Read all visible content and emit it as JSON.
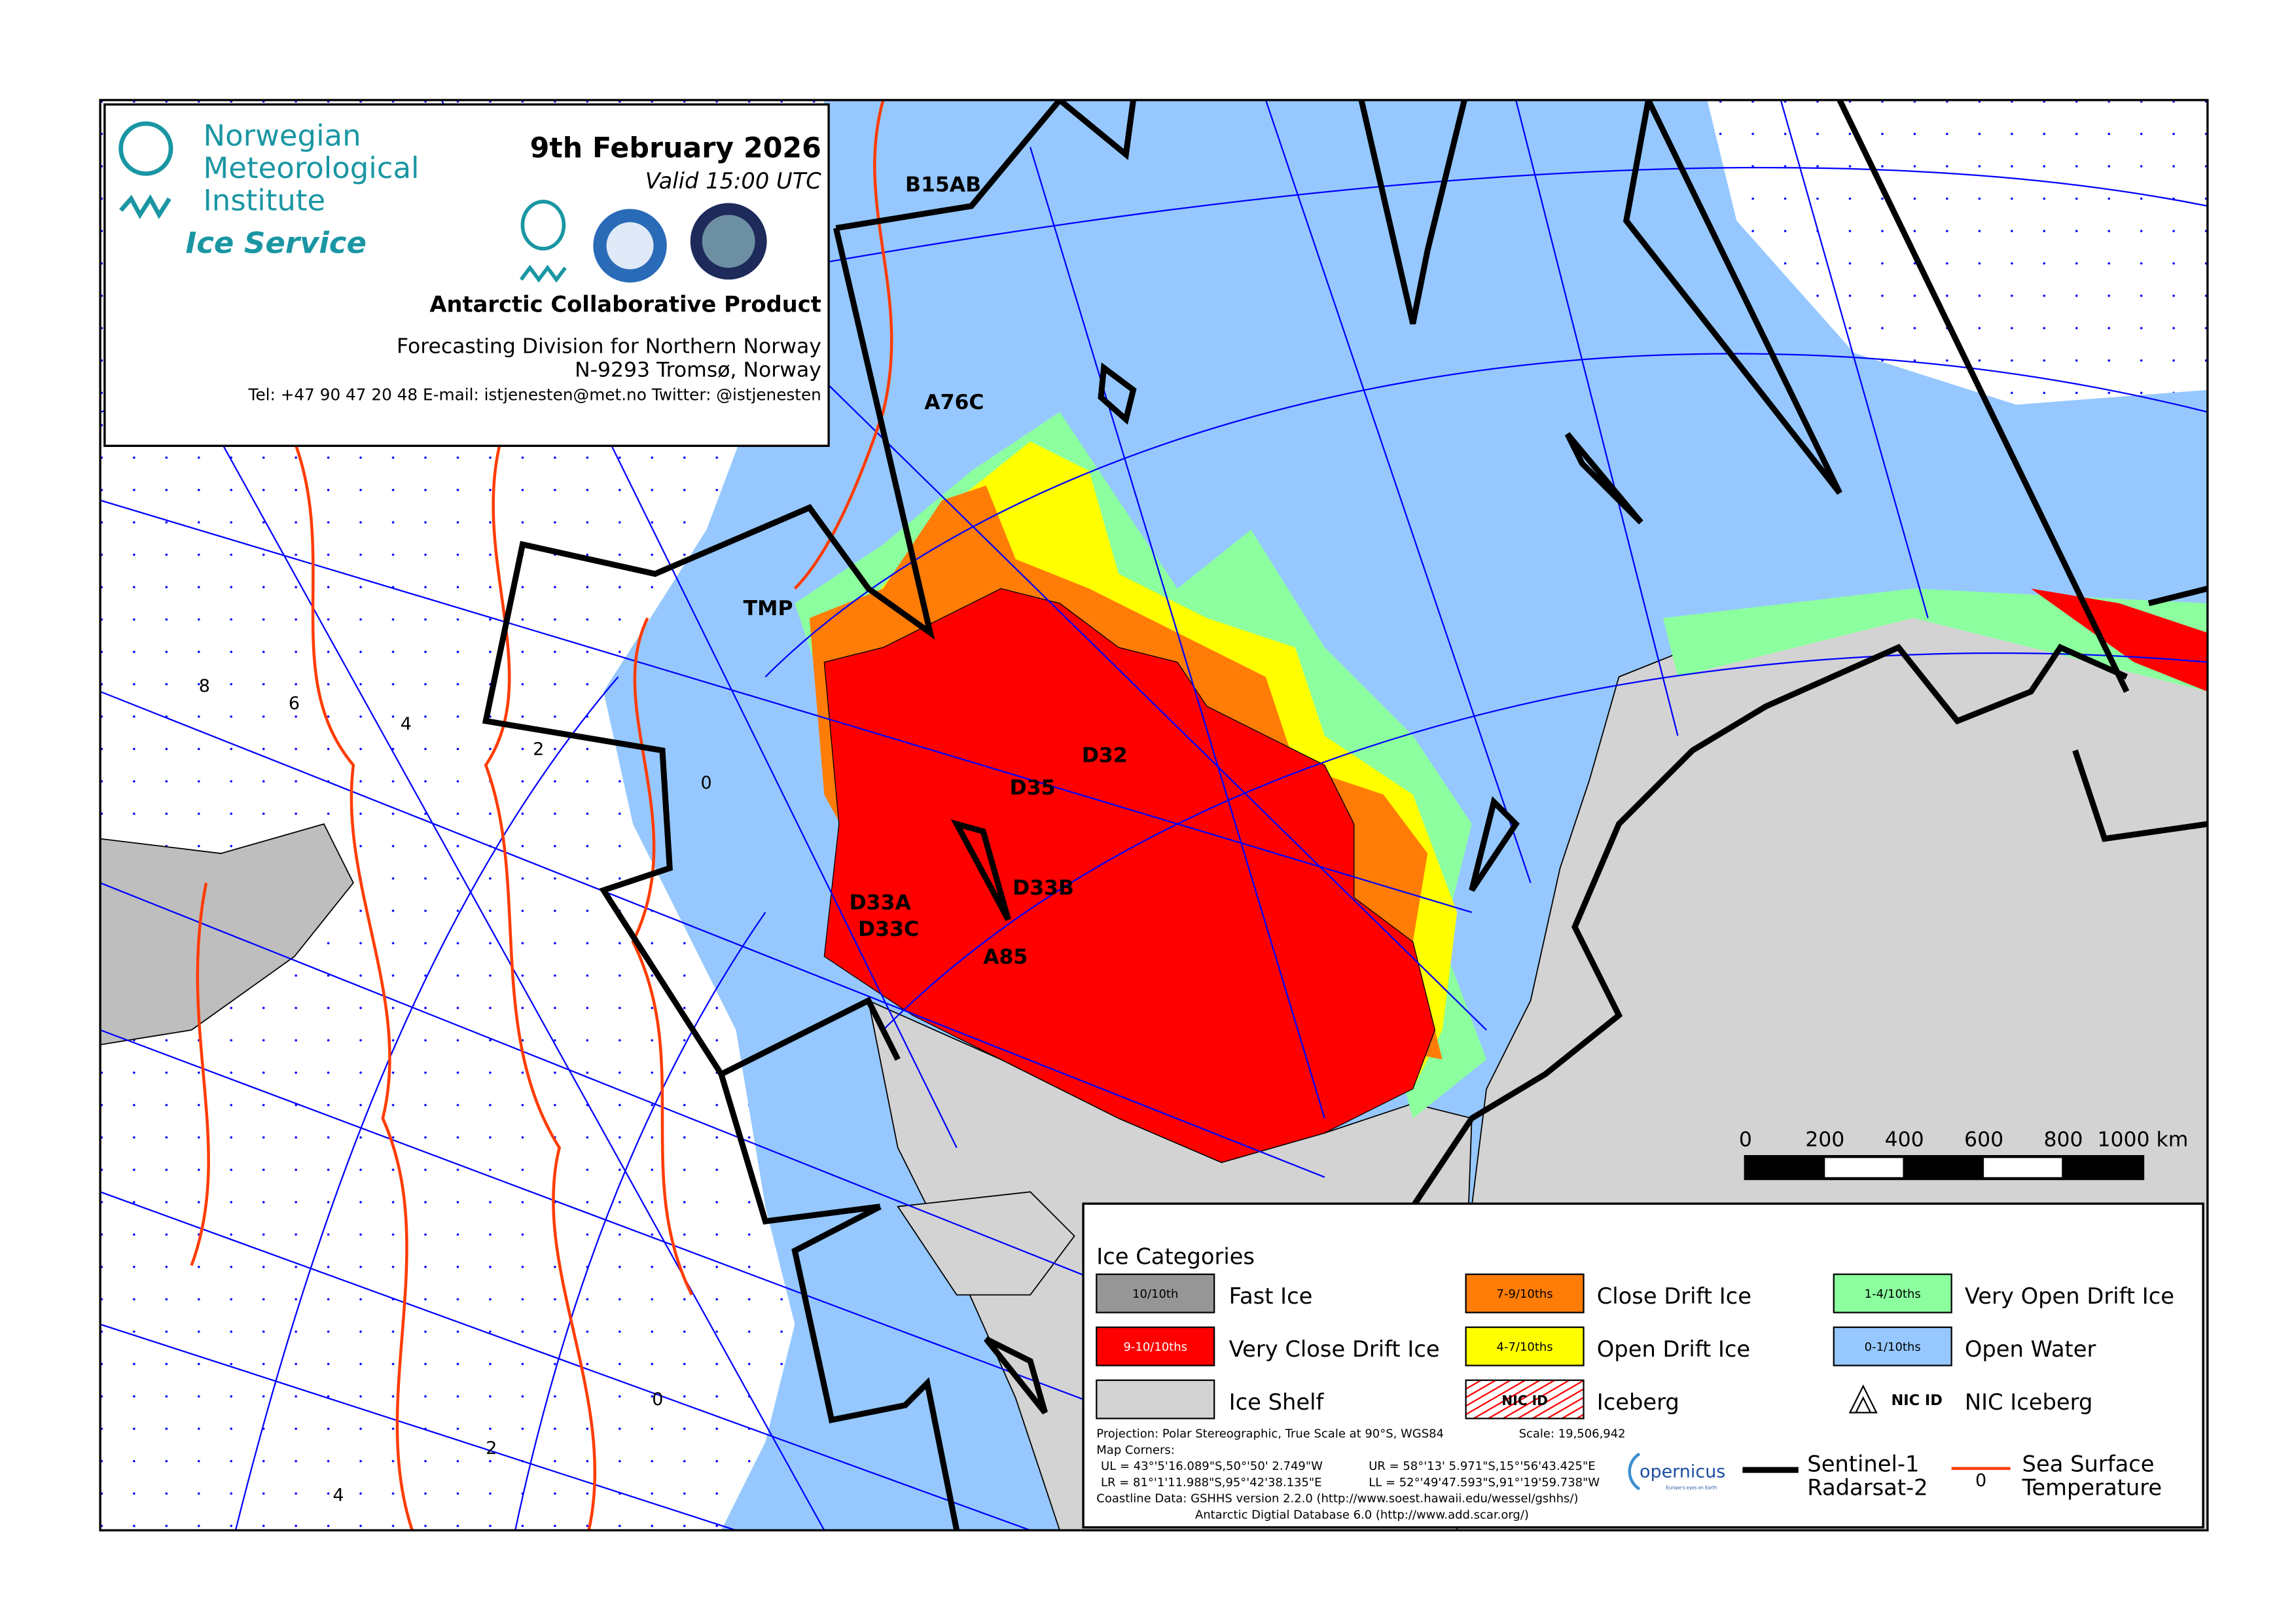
{
  "header": {
    "institute_lines": [
      "Norwegian",
      "Meteorological",
      "Institute"
    ],
    "service": "Ice Service",
    "date": "9th February 2026",
    "valid": "Valid 15:00 UTC",
    "product": "Antarctic Collaborative Product",
    "division": "Forecasting Division for Northern Norway",
    "address": "N-9293 Tromsø, Norway",
    "contact": "Tel: +47 90 47 20 48   E-mail: istjenesten@met.no   Twitter: @istjenesten"
  },
  "map": {
    "iceberg_labels": [
      "B15AB",
      "A76C",
      "TMP",
      "D32",
      "D35",
      "D33B",
      "D33A",
      "D33C",
      "A85"
    ],
    "sst_labels": [
      "8",
      "6",
      "4",
      "2",
      "0",
      "0",
      "2",
      "4"
    ],
    "scale_bar": {
      "labels": [
        "0",
        "200",
        "400",
        "600",
        "800",
        "1000 km"
      ]
    }
  },
  "legend": {
    "title": "Ice Categories",
    "items": [
      {
        "code": "10/10th",
        "label": "Fast Ice",
        "color": "#969696"
      },
      {
        "code": "9-10/10ths",
        "label": "Very Close Drift Ice",
        "color": "#ff0000"
      },
      {
        "code": "",
        "label": "Ice Shelf",
        "color": "#d3d3d3"
      },
      {
        "code": "7-9/10ths",
        "label": "Close Drift Ice",
        "color": "#ff7d07"
      },
      {
        "code": "4-7/10ths",
        "label": "Open Drift Ice",
        "color": "#ffff00"
      },
      {
        "code": "NIC ID",
        "label": "Iceberg",
        "color": "#ff0000"
      },
      {
        "code": "1-4/10ths",
        "label": "Very Open Drift Ice",
        "color": "#8cff9f"
      },
      {
        "code": "0-1/10ths",
        "label": "Open Water",
        "color": "#96c8ff"
      },
      {
        "code": "NIC ID",
        "label": "NIC Iceberg",
        "color": "#000000"
      }
    ],
    "projection": "Projection: Polar Stereographic, True Scale at 90°S, WGS84",
    "scale": "Scale: 19,506,942",
    "map_corners_title": "Map Corners:",
    "ul": "UL = 43°'5'16.089\"S,50°'50' 2.749\"W",
    "ur": "UR = 58°'13' 5.971\"S,15°'56'43.425\"E",
    "lr": "LR =  81°'1'11.988\"S,95°'42'38.135\"E",
    "ll": "LL = 52°'49'47.593\"S,91°'19'59.738\"W",
    "coastline_1": "Coastline Data:  GSHHS version 2.2.0 (http://www.soest.hawaii.edu/wessel/gshhs/)",
    "coastline_2": "Antarctic Digtial Database 6.0 (http://www.add.scar.org/)",
    "copernicus": "opernicus",
    "copernicus_tag": "Europe's eyes on Earth",
    "sat_line_1": "Sentinel-1",
    "sat_line_2": "Radarsat-2",
    "sst_symbol": "0",
    "sst_line_1": "Sea Surface",
    "sst_line_2": "Temperature"
  },
  "colors": {
    "brand": "#1a96a3",
    "sst": "#ff3c00",
    "grid": "#0000ff",
    "open_water": "#96c8ff"
  }
}
